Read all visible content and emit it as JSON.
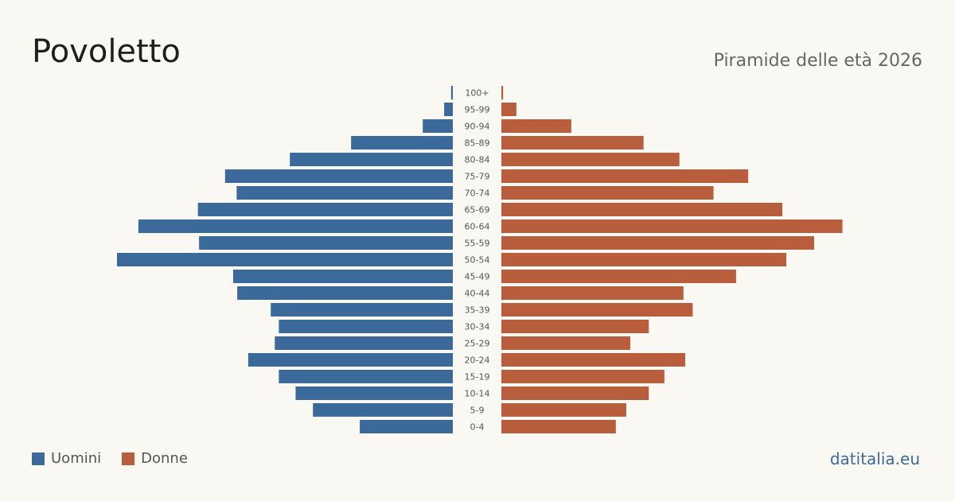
{
  "title": "Povoletto",
  "subtitle": "Piramide delle età 2026",
  "legend": {
    "men_label": "Uomini",
    "women_label": "Donne"
  },
  "brand": "datitalia.eu",
  "colors": {
    "men": "#3b6a9a",
    "women": "#b85e3c",
    "background": "#faf8f3"
  },
  "chart_data": {
    "type": "bar",
    "orientation": "horizontal-mirrored",
    "categories": [
      "100+",
      "95-99",
      "90-94",
      "85-89",
      "80-84",
      "75-79",
      "70-74",
      "65-69",
      "60-64",
      "55-59",
      "50-54",
      "45-49",
      "40-44",
      "35-39",
      "30-34",
      "25-29",
      "20-24",
      "15-19",
      "10-14",
      "5-9",
      "0-4"
    ],
    "series": [
      {
        "name": "Uomini",
        "values": [
          0.3,
          1.5,
          5.2,
          17.6,
          28.2,
          39.4,
          37.4,
          44.1,
          54.4,
          43.9,
          58.1,
          38.0,
          37.3,
          31.5,
          30.1,
          30.8,
          35.4,
          30.1,
          27.2,
          24.2,
          16.1
        ]
      },
      {
        "name": "Donne",
        "values": [
          0.3,
          2.6,
          12.1,
          24.6,
          30.8,
          42.7,
          36.7,
          48.6,
          59.0,
          54.1,
          49.3,
          40.6,
          31.5,
          33.1,
          25.5,
          22.3,
          31.8,
          28.2,
          25.5,
          21.6,
          19.8
        ]
      }
    ],
    "xlabel": "",
    "ylabel": "",
    "grid": false,
    "legend_position": "bottom-left"
  }
}
